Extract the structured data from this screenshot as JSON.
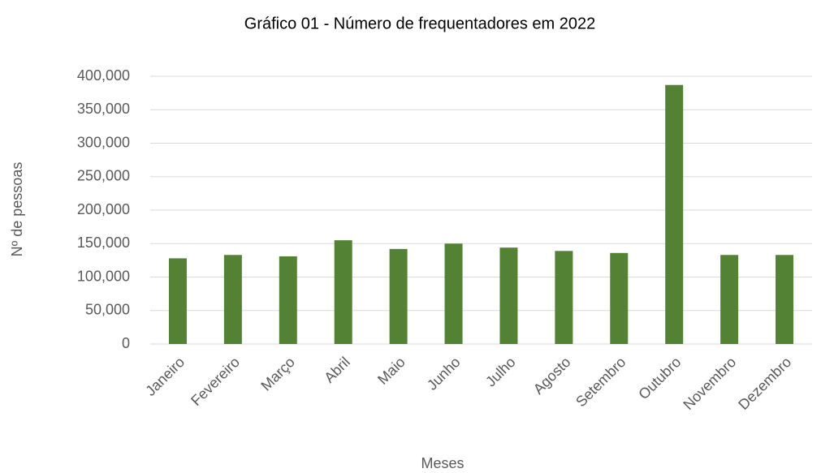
{
  "chart_data": {
    "type": "bar",
    "title": "Gráfico 01 - Número de frequentadores em 2022",
    "x_label": "Meses",
    "y_label": "Nº de pessoas",
    "categories": [
      "Janeiro",
      "Fevereiro",
      "Março",
      "Abril",
      "Maio",
      "Junho",
      "Julho",
      "Agosto",
      "Setembro",
      "Outubro",
      "Novembro",
      "Dezembro"
    ],
    "values": [
      128000,
      133000,
      131000,
      155000,
      142000,
      150000,
      144000,
      139000,
      136000,
      387000,
      133000,
      133000
    ],
    "color": "#548235",
    "ylim": [
      0,
      400000
    ],
    "yticks": [
      0,
      {
        "value": 50000,
        "label": "50,000"
      },
      {
        "value": 100000,
        "label": "100,000"
      },
      {
        "value": 150000,
        "label": "150,000"
      },
      {
        "value": 200000,
        "label": "200,000"
      },
      {
        "value": 250000,
        "label": "250,000"
      },
      {
        "value": 300000,
        "label": "300,000"
      },
      {
        "value": 350000,
        "label": "350,000"
      },
      {
        "value": 400000,
        "label": "400,000"
      }
    ],
    "grid": true
  }
}
